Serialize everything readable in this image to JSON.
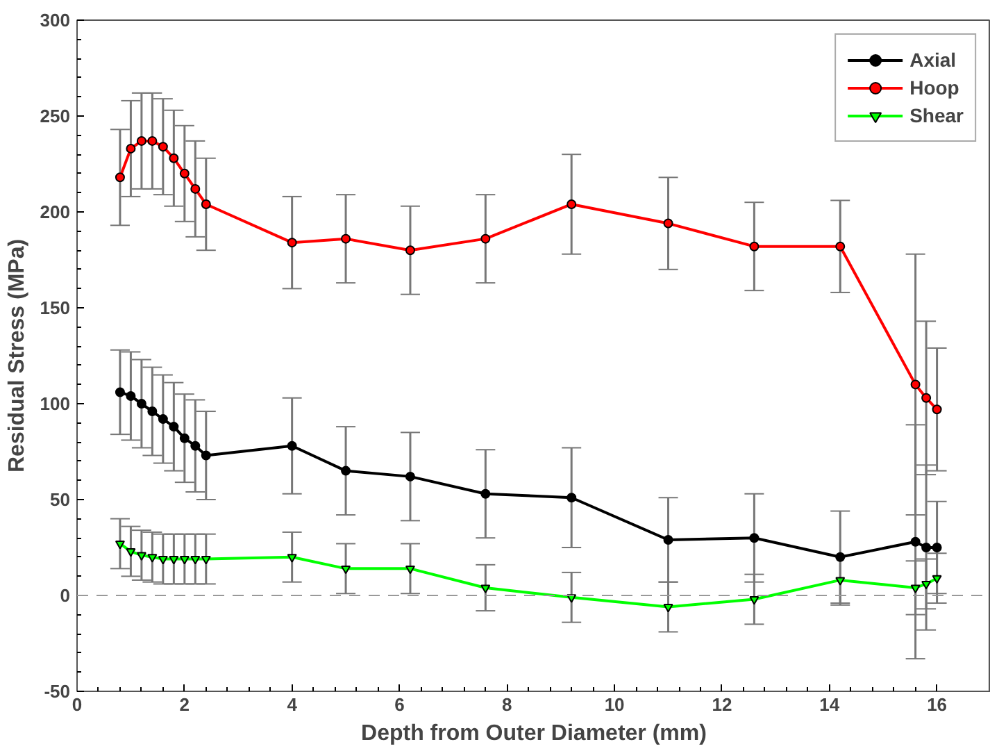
{
  "chart_data": {
    "type": "line",
    "xlabel": "Depth from Outer Diameter (mm)",
    "ylabel": "Residual Stress (MPa)",
    "x": [
      0.8,
      1.0,
      1.2,
      1.4,
      1.6,
      1.8,
      2.0,
      2.2,
      2.4,
      4.0,
      5.0,
      6.2,
      7.6,
      9.2,
      11.0,
      12.6,
      14.2,
      15.6,
      15.8,
      16.0
    ],
    "series": [
      {
        "name": "Axial",
        "color": "#000000",
        "marker": "circle",
        "values": [
          106,
          104,
          100,
          96,
          92,
          88,
          82,
          78,
          73,
          78,
          65,
          62,
          53,
          51,
          29,
          30,
          20,
          28,
          25,
          25
        ],
        "errors": [
          22,
          23,
          23,
          23,
          23,
          23,
          23,
          24,
          23,
          25,
          23,
          23,
          23,
          26,
          22,
          23,
          24,
          61,
          43,
          24
        ]
      },
      {
        "name": "Hoop",
        "color": "#ff0000",
        "marker": "circle",
        "values": [
          218,
          233,
          237,
          237,
          234,
          228,
          220,
          212,
          204,
          184,
          186,
          180,
          186,
          204,
          194,
          182,
          182,
          110,
          103,
          97
        ],
        "errors": [
          25,
          25,
          25,
          25,
          25,
          25,
          25,
          25,
          24,
          24,
          23,
          23,
          23,
          26,
          24,
          23,
          24,
          68,
          40,
          32
        ]
      },
      {
        "name": "Shear",
        "color": "#00ff00",
        "marker": "triangle",
        "values": [
          27,
          23,
          21,
          20,
          19,
          19,
          19,
          19,
          19,
          20,
          14,
          14,
          4,
          -1,
          -6,
          -2,
          8,
          4,
          6,
          9
        ],
        "errors": [
          13,
          13,
          13,
          13,
          13,
          13,
          13,
          13,
          13,
          13,
          13,
          13,
          12,
          13,
          13,
          13,
          13,
          14,
          13,
          13
        ]
      }
    ],
    "xlim": [
      0,
      17
    ],
    "xticks": [
      0,
      2,
      4,
      6,
      8,
      10,
      12,
      14,
      16
    ],
    "ylim": [
      -50,
      300
    ],
    "yticks": [
      -50,
      0,
      50,
      100,
      150,
      200,
      250,
      300
    ],
    "ref_lines": [
      {
        "axis": "y",
        "value": 0,
        "color": "#999999",
        "line_style": "dashed"
      }
    ],
    "grid": false,
    "legend": "top right"
  }
}
